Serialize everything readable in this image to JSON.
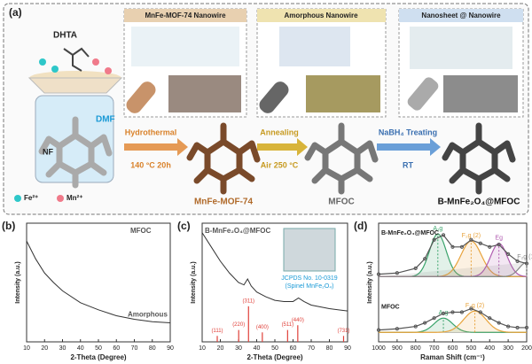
{
  "panel_a": {
    "label": "(a)",
    "precursor": "DHTA",
    "solvent": "DMF",
    "substrate": "NF",
    "legend": [
      "Fe²⁺",
      "Mn²⁺"
    ],
    "insets": [
      "MnFe-MOF-74 Nanowire",
      "Amorphous Nanowire",
      "Nanosheet @ Nanowire"
    ],
    "steps": [
      {
        "name": "Hydrothermal",
        "condition": "140 °C 20h"
      },
      {
        "name": "Annealing",
        "condition": "Air 250 °C"
      },
      {
        "name": "NaBH₄ Treating",
        "condition": "RT"
      }
    ],
    "products": [
      "MnFe-MOF-74",
      "MFOC",
      "B-MnFe₂O₄@MFOC"
    ]
  },
  "chart_data": [
    {
      "type": "line",
      "label": "(b)",
      "title": "MFOC",
      "annotation": "Amorphous",
      "x_label": "2-Theta (Degree)",
      "y_label": "Intensity (a.u.)",
      "xlim": [
        10,
        90
      ],
      "xticks": [
        10,
        20,
        30,
        40,
        50,
        60,
        70,
        80,
        90
      ],
      "ylim": [
        0,
        1
      ],
      "x": [
        10,
        15,
        20,
        25,
        30,
        40,
        50,
        60,
        70,
        80,
        90
      ],
      "series": [
        {
          "color": "#333333",
          "values": [
            0.85,
            0.7,
            0.58,
            0.5,
            0.43,
            0.33,
            0.27,
            0.22,
            0.19,
            0.17,
            0.16
          ]
        }
      ]
    },
    {
      "type": "line",
      "label": "(c)",
      "title": "B-MnFe₂O₄@MFOC",
      "annotations": [
        "JCPDS No. 10-0319",
        "(Spinel MnFe₂O₄)"
      ],
      "x_label": "2-Theta (Degree)",
      "y_label": "Intensity (a.u.)",
      "xlim": [
        10,
        90
      ],
      "xticks": [
        10,
        20,
        30,
        40,
        50,
        60,
        70,
        80,
        90
      ],
      "ylim": [
        0,
        1
      ],
      "x": [
        10,
        15,
        20,
        25,
        30,
        33,
        35,
        37,
        40,
        45,
        50,
        55,
        60,
        63,
        66,
        70,
        80,
        90
      ],
      "series": [
        {
          "color": "#333333",
          "values": [
            0.92,
            0.8,
            0.68,
            0.58,
            0.5,
            0.48,
            0.53,
            0.47,
            0.42,
            0.38,
            0.35,
            0.34,
            0.34,
            0.37,
            0.34,
            0.31,
            0.28,
            0.26
          ]
        }
      ],
      "references": {
        "color": "#e0403a",
        "x": [
          18.3,
          30.1,
          35.5,
          43.1,
          57.0,
          62.6,
          87.8
        ],
        "values": [
          0.05,
          0.1,
          0.3,
          0.08,
          0.1,
          0.14,
          0.05
        ],
        "labels": [
          "(111)",
          "(220)",
          "(311)",
          "(400)",
          "(511)",
          "(440)",
          "(731)"
        ]
      }
    },
    {
      "type": "raman",
      "label": "(d)",
      "x_label": "Raman Shift (cm⁻¹)",
      "y_label": "Intensity (a.u.)",
      "xlim": [
        1000,
        200
      ],
      "xticks": [
        1000,
        900,
        800,
        700,
        600,
        500,
        400,
        300,
        200
      ],
      "ylim": [
        0,
        1
      ],
      "x": [
        1000,
        900,
        800,
        750,
        700,
        650,
        600,
        550,
        500,
        450,
        400,
        350,
        300,
        250,
        200
      ],
      "series": [
        {
          "name": "B-MnFe₂O₄@MFOC",
          "color": "#555555",
          "baseline": 0.55,
          "values": [
            0.57,
            0.58,
            0.62,
            0.7,
            0.86,
            0.9,
            0.8,
            0.8,
            0.86,
            0.83,
            0.8,
            0.82,
            0.74,
            0.68,
            0.66
          ],
          "peaks": [
            {
              "label": "A₁g",
              "center": 680,
              "height": 0.36,
              "width": 45,
              "color": "#3aa36b"
            },
            {
              "label": "F₂g (2)",
              "center": 500,
              "height": 0.3,
              "width": 55,
              "color": "#e8a33b"
            },
            {
              "label": "Eg",
              "center": 350,
              "height": 0.28,
              "width": 45,
              "color": "#b05cb0"
            },
            {
              "label": "F₂g (1)",
              "center": 200,
              "height": 0.12,
              "width": 40,
              "color": "#888888"
            }
          ]
        },
        {
          "name": "MFOC",
          "color": "#555555",
          "baseline": 0.08,
          "values": [
            0.1,
            0.11,
            0.13,
            0.16,
            0.2,
            0.24,
            0.25,
            0.25,
            0.28,
            0.25,
            0.2,
            0.16,
            0.13,
            0.12,
            0.12
          ],
          "peaks": [
            {
              "label": "A₁g",
              "center": 650,
              "height": 0.12,
              "width": 50,
              "color": "#3aa36b"
            },
            {
              "label": "F₂g (2)",
              "center": 480,
              "height": 0.18,
              "width": 60,
              "color": "#e8a33b"
            }
          ]
        }
      ]
    }
  ]
}
